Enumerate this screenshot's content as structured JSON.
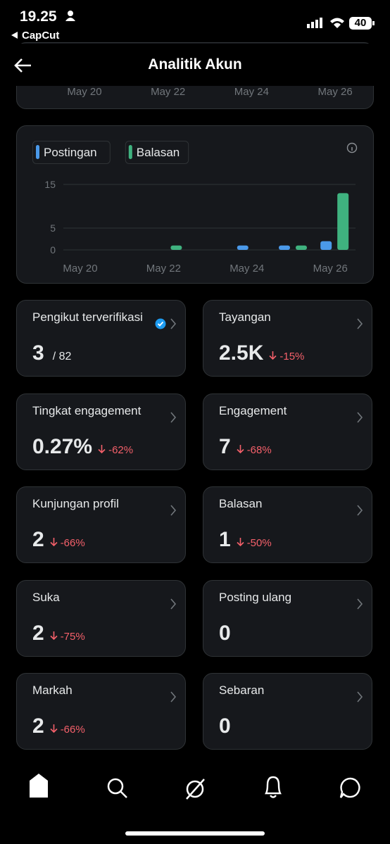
{
  "status_bar": {
    "time": "19.25",
    "back_app": "CapCut",
    "battery": "40"
  },
  "header": {
    "title": "Analitik Akun"
  },
  "top_chart": {
    "x_labels": [
      "May 20",
      "May 22",
      "May 24",
      "May 26"
    ]
  },
  "chart_data": {
    "type": "bar",
    "categories": [
      "May 20",
      null,
      "May 22",
      null,
      "May 24",
      null,
      "May 26"
    ],
    "series": [
      {
        "name": "Postingan",
        "color": "#4a99e9",
        "values": [
          0,
          0,
          0,
          0,
          1,
          1,
          2
        ]
      },
      {
        "name": "Balasan",
        "color": "#3fb27f",
        "values": [
          0,
          0,
          1,
          0,
          0,
          1,
          13
        ]
      }
    ],
    "ylim": [
      0,
      15
    ],
    "yticks": [
      0,
      5,
      15
    ],
    "grid": true
  },
  "cards": [
    {
      "title": "Pengikut terverifikasi",
      "value": "3",
      "total": "/ 82",
      "verified": true
    },
    {
      "title": "Tayangan",
      "value": "2.5K",
      "change": "-15%"
    },
    {
      "title": "Tingkat engagement",
      "value": "0.27%",
      "change": "-62%"
    },
    {
      "title": "Engagement",
      "value": "7",
      "change": "-68%"
    },
    {
      "title": "Kunjungan profil",
      "value": "2",
      "change": "-66%"
    },
    {
      "title": "Balasan",
      "value": "1",
      "change": "-50%"
    },
    {
      "title": "Suka",
      "value": "2",
      "change": "-75%"
    },
    {
      "title": "Posting ulang",
      "value": "0"
    },
    {
      "title": "Markah",
      "value": "2",
      "change": "-66%"
    },
    {
      "title": "Sebaran",
      "value": "0"
    }
  ]
}
